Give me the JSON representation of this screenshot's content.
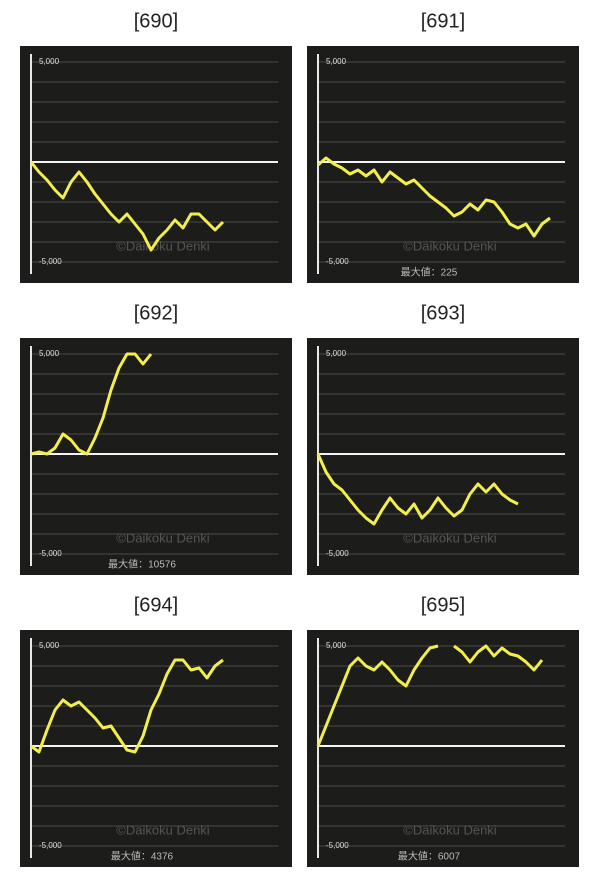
{
  "chart_data": [
    {
      "type": "line",
      "title": "[690]",
      "color": "#f2ee4c",
      "ylim": [
        -5000,
        5000
      ],
      "yticks": [
        {
          "value": 5000,
          "label": "5,000"
        },
        {
          "value": -5000,
          "label": "-5,000"
        }
      ],
      "minor_yticks": [
        -4000,
        -3000,
        -2000,
        -1000,
        0,
        1000,
        2000,
        3000,
        4000
      ],
      "values": [
        0,
        -500,
        -900,
        -1400,
        -1800,
        -1000,
        -500,
        -1000,
        -1600,
        -2100,
        -2600,
        -3000,
        -2600,
        -3100,
        -3600,
        -4400,
        -3800,
        -3400,
        -2900,
        -3300,
        -2600,
        -2600,
        -3000,
        -3400,
        -3000
      ],
      "watermark": "©Daikoku Denki"
    },
    {
      "type": "line",
      "title": "[691]",
      "color": "#f2ee4c",
      "ylim": [
        -5000,
        5000
      ],
      "yticks": [
        {
          "value": 5000,
          "label": "5,000"
        },
        {
          "value": -5000,
          "label": "-5,000"
        }
      ],
      "minor_yticks": [
        -4000,
        -3000,
        -2000,
        -1000,
        0,
        1000,
        2000,
        3000,
        4000
      ],
      "values": [
        -150,
        200,
        -100,
        -300,
        -600,
        -400,
        -700,
        -400,
        -1000,
        -500,
        -800,
        -1100,
        -900,
        -1300,
        -1700,
        -2000,
        -2300,
        -2700,
        -2500,
        -2100,
        -2400,
        -1900,
        -2000,
        -2500,
        -3100,
        -3300,
        -3100,
        -3700,
        -3100,
        -2800
      ],
      "watermark": "©Daikoku Denki",
      "max_label": "最大値：225"
    },
    {
      "type": "line",
      "title": "[692]",
      "color": "#f2ee4c",
      "ylim": [
        -5000,
        5000
      ],
      "yticks": [
        {
          "value": 5000,
          "label": "5,000"
        },
        {
          "value": -5000,
          "label": "-5,000"
        }
      ],
      "minor_yticks": [
        -4000,
        -3000,
        -2000,
        -1000,
        0,
        1000,
        2000,
        3000,
        4000
      ],
      "values": [
        0,
        100,
        0,
        300,
        1000,
        700,
        200,
        0,
        800,
        1800,
        3200,
        4300,
        5000,
        5000,
        4500,
        5000
      ],
      "watermark": "©Daikoku Denki",
      "max_label": "最大値：10576"
    },
    {
      "type": "line",
      "title": "[693]",
      "color": "#f2ee4c",
      "ylim": [
        -5000,
        5000
      ],
      "yticks": [
        {
          "value": 5000,
          "label": "5,000"
        },
        {
          "value": -5000,
          "label": "-5,000"
        }
      ],
      "minor_yticks": [
        -4000,
        -3000,
        -2000,
        -1000,
        0,
        1000,
        2000,
        3000,
        4000
      ],
      "values": [
        0,
        -900,
        -1500,
        -1800,
        -2300,
        -2800,
        -3200,
        -3500,
        -2800,
        -2200,
        -2700,
        -3000,
        -2500,
        -3200,
        -2800,
        -2200,
        -2700,
        -3100,
        -2800,
        -2000,
        -1500,
        -1900,
        -1500,
        -2000,
        -2300,
        -2500
      ],
      "watermark": "©Daikoku Denki"
    },
    {
      "type": "line",
      "title": "[694]",
      "color": "#f2ee4c",
      "ylim": [
        -5000,
        5000
      ],
      "yticks": [
        {
          "value": 5000,
          "label": "5,000"
        },
        {
          "value": -5000,
          "label": "-5,000"
        }
      ],
      "minor_yticks": [
        -4000,
        -3000,
        -2000,
        -1000,
        0,
        1000,
        2000,
        3000,
        4000
      ],
      "values": [
        0,
        -300,
        800,
        1800,
        2300,
        2000,
        2200,
        1800,
        1400,
        900,
        1000,
        400,
        -200,
        -300,
        500,
        1800,
        2600,
        3600,
        4300,
        4300,
        3800,
        3900,
        3400,
        4000,
        4300
      ],
      "watermark": "©Daikoku Denki",
      "max_label": "最大値：4376"
    },
    {
      "type": "line",
      "title": "[695]",
      "color": "#f2ee4c",
      "ylim": [
        -5000,
        5000
      ],
      "yticks": [
        {
          "value": 5000,
          "label": "5,000"
        },
        {
          "value": -5000,
          "label": "-5,000"
        }
      ],
      "minor_yticks": [
        -4000,
        -3000,
        -2000,
        -1000,
        0,
        1000,
        2000,
        3000,
        4000
      ],
      "values": [
        0,
        1000,
        2000,
        3000,
        4000,
        4400,
        4000,
        3800,
        4200,
        3800,
        3300,
        3000,
        3800,
        4400,
        4900,
        5000,
        null,
        5000,
        4700,
        4200,
        4700,
        5000,
        4500,
        4900,
        4600,
        4500,
        4200,
        3800,
        4300
      ],
      "watermark": "©Daikoku Denki",
      "max_label": "最大値：6007"
    }
  ]
}
